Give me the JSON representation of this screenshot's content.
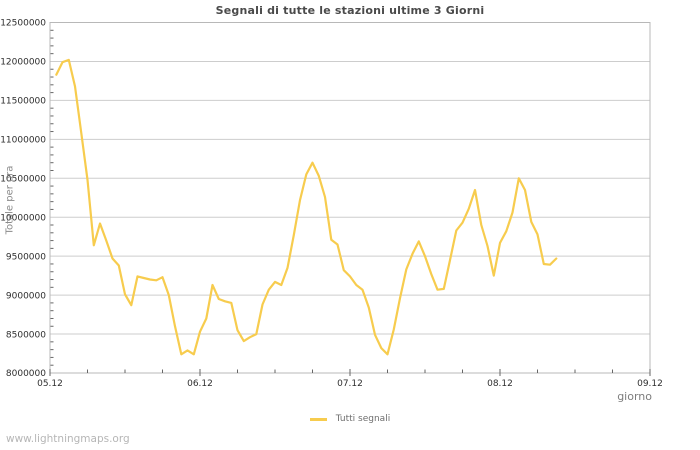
{
  "page": {
    "watermark": "www.lightningmaps.org"
  },
  "chart_data": {
    "type": "line",
    "title": "Segnali di tutte le stazioni ultime 3 Giorni",
    "xlabel": "giorno",
    "ylabel": "Totale per ora",
    "grid": {
      "horizontal": true,
      "vertical": false
    },
    "legend": {
      "position": "bottom-center",
      "entries": [
        {
          "label": "Tutti segnali",
          "color": "#f7cc4e"
        }
      ]
    },
    "x_axis": {
      "tick_labels": [
        "05.12",
        "06.12",
        "07.12",
        "08.12",
        "09.12"
      ],
      "major_tick_hours": [
        0,
        24,
        48,
        72,
        96
      ],
      "minor_step_hours": 6,
      "range_hours": [
        0,
        96
      ]
    },
    "y_axis": {
      "min": 8000000,
      "max": 12500000,
      "major_step": 500000,
      "minor_step": 100000,
      "tick_labels": [
        "8000000",
        "8500000",
        "9000000",
        "9500000",
        "10000000",
        "10500000",
        "11000000",
        "11500000",
        "12000000",
        "12500000"
      ]
    },
    "series": [
      {
        "name": "Tutti segnali",
        "color": "#f7cc4e",
        "start_hour": 1,
        "step_hours": 1,
        "values": [
          11830000,
          11990000,
          12020000,
          11680000,
          11080000,
          10480000,
          9640000,
          9920000,
          9700000,
          9470000,
          9380000,
          9010000,
          8870000,
          9240000,
          9220000,
          9200000,
          9190000,
          9230000,
          9000000,
          8600000,
          8240000,
          8290000,
          8240000,
          8530000,
          8700000,
          9130000,
          8950000,
          8920000,
          8900000,
          8550000,
          8410000,
          8460000,
          8500000,
          8880000,
          9070000,
          9170000,
          9130000,
          9350000,
          9770000,
          10220000,
          10550000,
          10700000,
          10530000,
          10260000,
          9710000,
          9650000,
          9320000,
          9240000,
          9130000,
          9070000,
          8840000,
          8490000,
          8320000,
          8240000,
          8560000,
          8960000,
          9330000,
          9530000,
          9690000,
          9500000,
          9270000,
          9070000,
          9080000,
          9450000,
          9830000,
          9930000,
          10110000,
          10350000,
          9900000,
          9630000,
          9250000,
          9670000,
          9820000,
          10060000,
          10500000,
          10350000,
          9940000,
          9780000,
          9400000,
          9390000,
          9470000
        ]
      }
    ]
  },
  "colors": {
    "line": "#f7cc4e",
    "grid": "#cdcdcd",
    "border": "#b8b8b8",
    "tick": "#666666",
    "tick_label": "#2e2e2e",
    "title": "#4a4a4a",
    "axis_title": "#7d7d7d",
    "legend_text": "#6e6e6e",
    "watermark": "#b6b6b6",
    "background": "#ffffff"
  }
}
